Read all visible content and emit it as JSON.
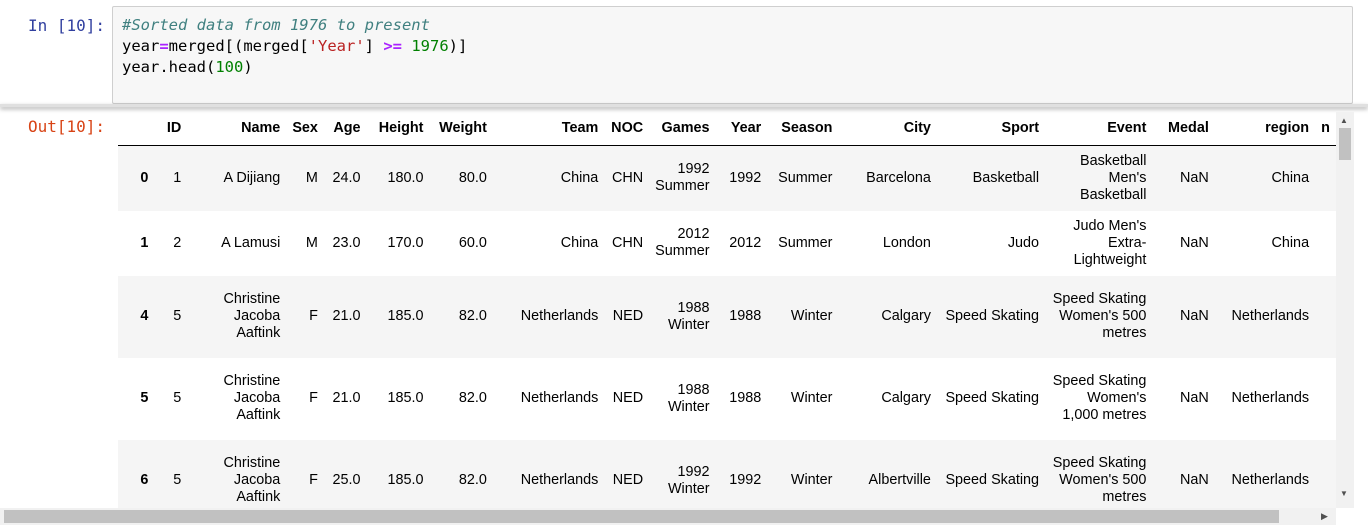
{
  "input_prompt": "In [10]:",
  "output_prompt": "Out[10]:",
  "code": {
    "comment": "#Sorted data from 1976 to present",
    "line2": {
      "a": "year",
      "eq": "=",
      "b": "merged[(merged[",
      "str": "'Year'",
      "c": "] ",
      "op": ">=",
      "d": " ",
      "num": "1976",
      "e": ")]"
    },
    "line3": {
      "a": "year.head(",
      "num": "100",
      "b": ")"
    }
  },
  "table": {
    "columns": [
      "",
      "ID",
      "Name",
      "Sex",
      "Age",
      "Height",
      "Weight",
      "Team",
      "NOC",
      "Games",
      "Year",
      "Season",
      "City",
      "Sport",
      "Event",
      "Medal",
      "region",
      "n"
    ],
    "rows": [
      [
        "0",
        "1",
        "A Dijiang",
        "M",
        "24.0",
        "180.0",
        "80.0",
        "China",
        "CHN",
        "1992 Summer",
        "1992",
        "Summer",
        "Barcelona",
        "Basketball",
        "Basketball Men's Basketball",
        "NaN",
        "China",
        ""
      ],
      [
        "1",
        "2",
        "A Lamusi",
        "M",
        "23.0",
        "170.0",
        "60.0",
        "China",
        "CHN",
        "2012 Summer",
        "2012",
        "Summer",
        "London",
        "Judo",
        "Judo Men's Extra-Lightweight",
        "NaN",
        "China",
        ""
      ],
      [
        "4",
        "5",
        "Christine Jacoba Aaftink",
        "F",
        "21.0",
        "185.0",
        "82.0",
        "Netherlands",
        "NED",
        "1988 Winter",
        "1988",
        "Winter",
        "Calgary",
        "Speed Skating",
        "Speed Skating Women's 500 metres",
        "NaN",
        "Netherlands",
        ""
      ],
      [
        "5",
        "5",
        "Christine Jacoba Aaftink",
        "F",
        "21.0",
        "185.0",
        "82.0",
        "Netherlands",
        "NED",
        "1988 Winter",
        "1988",
        "Winter",
        "Calgary",
        "Speed Skating",
        "Speed Skating Women's 1,000 metres",
        "NaN",
        "Netherlands",
        ""
      ],
      [
        "6",
        "5",
        "Christine Jacoba Aaftink",
        "F",
        "25.0",
        "185.0",
        "82.0",
        "Netherlands",
        "NED",
        "1992 Winter",
        "1992",
        "Winter",
        "Albertville",
        "Speed Skating",
        "Speed Skating Women's 500 metres",
        "NaN",
        "Netherlands",
        ""
      ]
    ]
  },
  "scrollbar": {
    "up": "▲",
    "down": "▼",
    "right": "▶"
  }
}
